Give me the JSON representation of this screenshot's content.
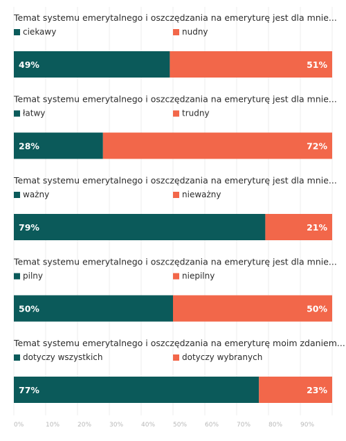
{
  "chart_data": {
    "type": "bar",
    "orientation": "horizontal",
    "stacked": true,
    "colors": [
      "#0b5a5a",
      "#f2674a"
    ],
    "xlim": [
      0,
      100
    ],
    "xticks": [
      "0%",
      "10%",
      "20%",
      "30%",
      "40%",
      "50%",
      "60%",
      "70%",
      "80%",
      "90%"
    ],
    "grid": true,
    "legend_placement": "above each bar",
    "items": [
      {
        "question": "Temat systemu emerytalnego i oszczędzania na emeryturę jest dla mnie...",
        "left_label": "ciekawy",
        "right_label": "nudny",
        "left_value": 49,
        "right_value": 51,
        "left_text": "49%",
        "right_text": "51%"
      },
      {
        "question": "Temat systemu emerytalnego i oszczędzania na emeryturę jest dla mnie...",
        "left_label": "łatwy",
        "right_label": "trudny",
        "left_value": 28,
        "right_value": 72,
        "left_text": "28%",
        "right_text": "72%"
      },
      {
        "question": "Temat systemu emerytalnego i oszczędzania na emeryturę jest dla mnie...",
        "left_label": "ważny",
        "right_label": "nieważny",
        "left_value": 79,
        "right_value": 21,
        "left_text": "79%",
        "right_text": "21%"
      },
      {
        "question": "Temat systemu emerytalnego i oszczędzania na emeryturę jest dla mnie...",
        "left_label": "pilny",
        "right_label": "niepilny",
        "left_value": 50,
        "right_value": 50,
        "left_text": "50%",
        "right_text": "50%"
      },
      {
        "question": "Temat systemu emerytalnego i oszczędzania na emeryturę moim zdaniem...",
        "left_label": "dotyczy wszystkich",
        "right_label": "dotyczy wybranych",
        "left_value": 77,
        "right_value": 23,
        "left_text": "77%",
        "right_text": "23%"
      }
    ]
  }
}
